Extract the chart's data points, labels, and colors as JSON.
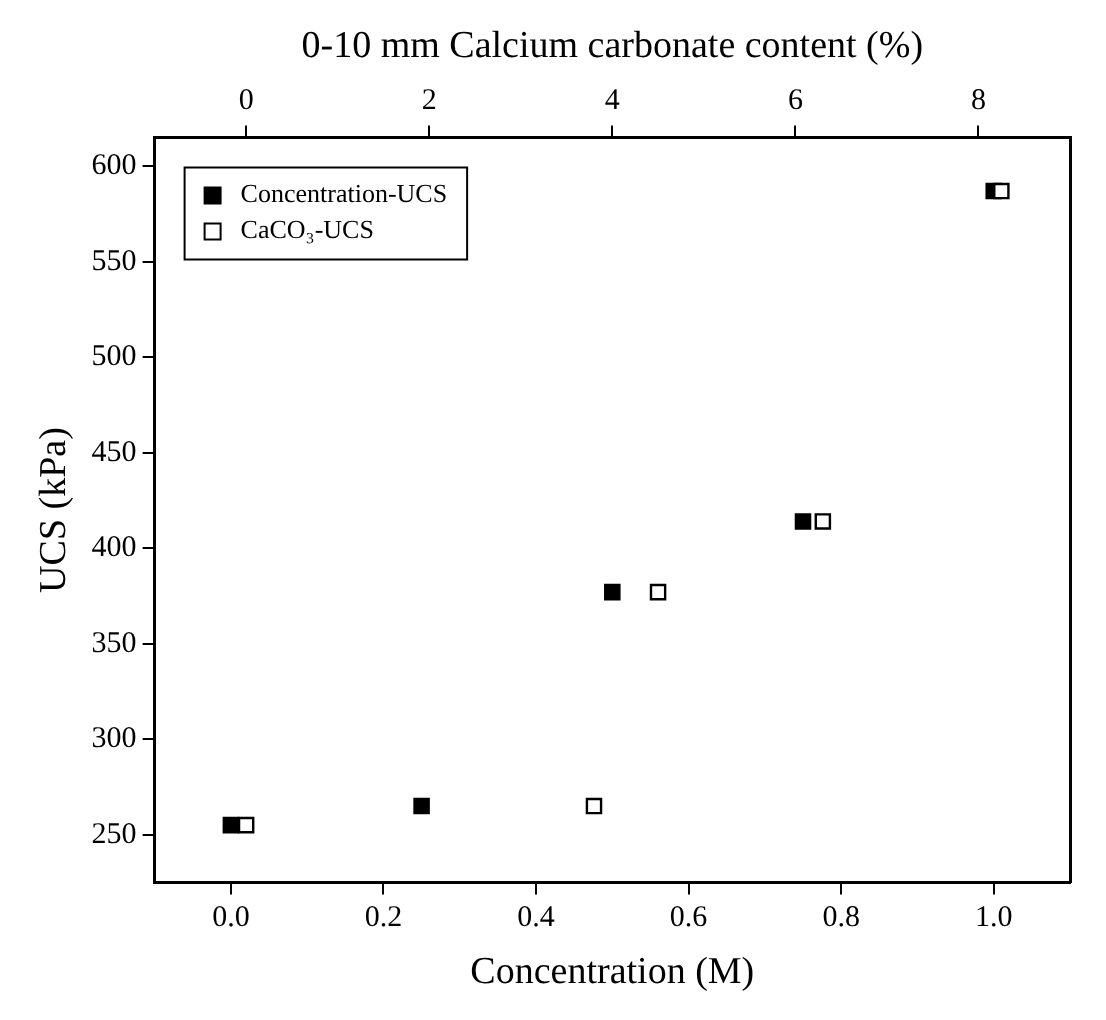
{
  "chart_data": {
    "type": "scatter",
    "xlabel": "Concentration (M)",
    "x2label": "0-10 mm Calcium carbonate content (%)",
    "ylabel": "UCS (kPa)",
    "xlim": [
      -0.1,
      1.1
    ],
    "xticks": [
      {
        "value": 0,
        "label": "0.0"
      },
      0.2,
      0.4,
      0.6,
      0.8,
      {
        "value": 1,
        "label": "1.0"
      }
    ],
    "x2lim": [
      -1,
      9
    ],
    "x2ticks": [
      0,
      2,
      4,
      6,
      8
    ],
    "ylim": [
      225,
      615
    ],
    "yticks": [
      250,
      300,
      350,
      400,
      450,
      500,
      550,
      600
    ],
    "marker": "square",
    "legend": "top left",
    "series": [
      {
        "name": "Concentration-UCS",
        "color": "#000000",
        "x": [
          0,
          0.25,
          0.5,
          0.75,
          1.0
        ],
        "values": [
          255,
          265,
          377,
          414,
          587
        ]
      },
      {
        "name": "CaCO₃-UCS",
        "color": "#ffffff",
        "axis": "x2",
        "x": [
          0,
          3.8,
          4.5,
          6.3,
          8.25
        ],
        "values": [
          255,
          265,
          377,
          414,
          587
        ]
      }
    ]
  }
}
